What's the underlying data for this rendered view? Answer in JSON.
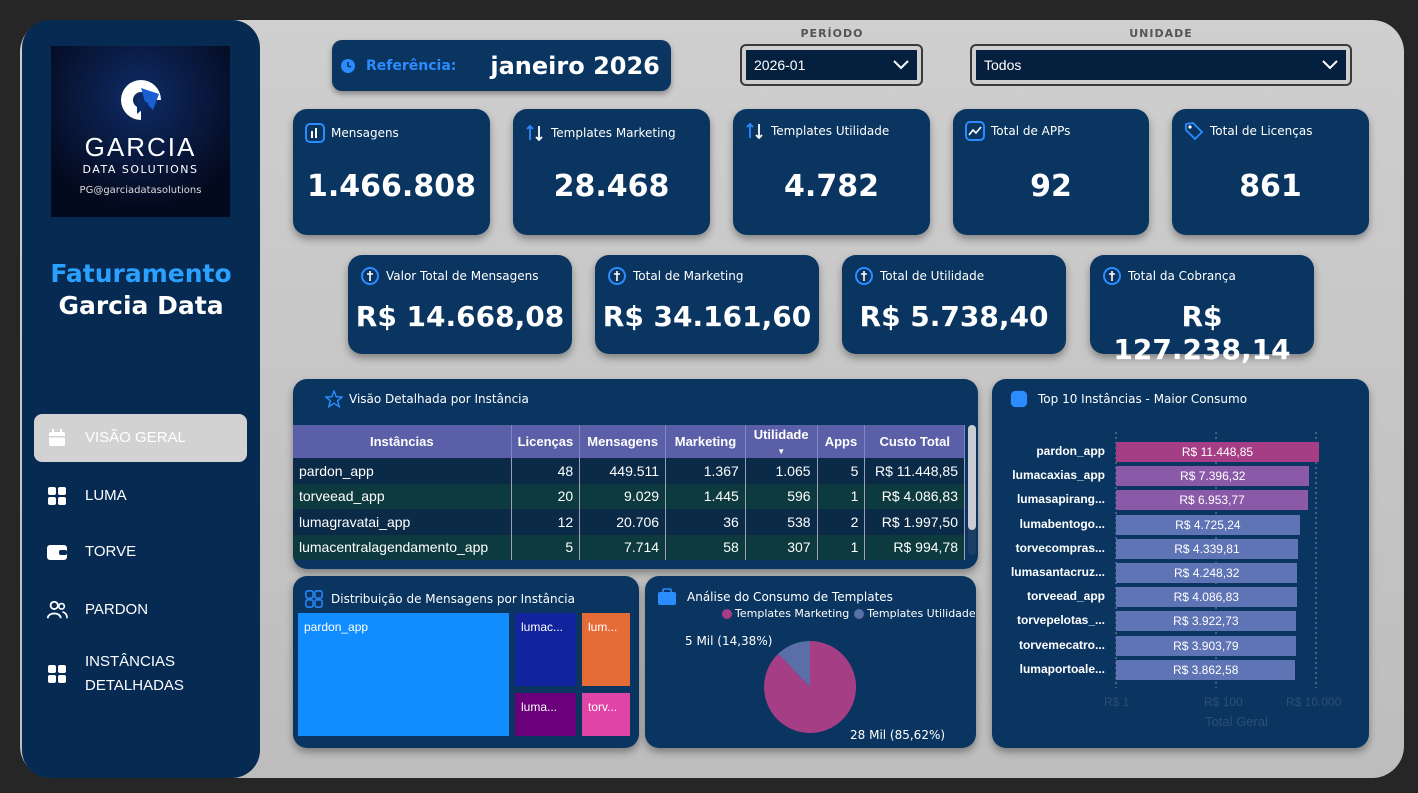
{
  "logo": {
    "title": "GARCIA",
    "subtitle": "DATA SOLUTIONS",
    "email": "PG@garciadatasolutions"
  },
  "brand": {
    "line1": "Faturamento",
    "line2": "Garcia Data"
  },
  "nav": [
    {
      "label": "VISÃO GERAL",
      "icon": "calendar-icon",
      "active": true
    },
    {
      "label": "LUMA",
      "icon": "grid-icon",
      "active": false
    },
    {
      "label": "TORVE",
      "icon": "wallet-icon",
      "active": false
    },
    {
      "label": "PARDON",
      "icon": "users-icon",
      "active": false
    },
    {
      "label": "INSTÂNCIAS DETALHADAS",
      "icon": "grid-icon",
      "active": false
    }
  ],
  "reference": {
    "label": "Referência:",
    "value": "janeiro 2026"
  },
  "filters": {
    "periodo": {
      "label": "PERÍODO",
      "value": "2026-01"
    },
    "unidade": {
      "label": "UNIDADE",
      "value": "Todos"
    }
  },
  "kpis_top": [
    {
      "label": "Mensagens",
      "value": "1.466.808",
      "icon": "chart-icon"
    },
    {
      "label": "Templates Marketing",
      "value": "28.468",
      "icon": "sort-icon"
    },
    {
      "label": "Templates Utilidade",
      "value": "4.782",
      "icon": "sort-icon"
    },
    {
      "label": "Total de APPs",
      "value": "92",
      "icon": "trend-icon"
    },
    {
      "label": "Total de Licenças",
      "value": "861",
      "icon": "tag-icon"
    }
  ],
  "kpis_money": [
    {
      "label": "Valor Total de Mensagens",
      "value": "R$ 14.668,08",
      "icon": "coin-icon"
    },
    {
      "label": "Total de Marketing",
      "value": "R$ 34.161,60",
      "icon": "coin-icon"
    },
    {
      "label": "Total de Utilidade",
      "value": "R$ 5.738,40",
      "icon": "coin-icon"
    },
    {
      "label": "Total da Cobrança",
      "value": "R$ 127.238,14",
      "icon": "coin-icon"
    }
  ],
  "table": {
    "title": "Visão Detalhada por Instância",
    "columns": [
      "Instâncias",
      "Licenças",
      "Mensagens",
      "Marketing",
      "Utilidade",
      "Apps",
      "Custo Total"
    ],
    "rows": [
      [
        "pardon_app",
        "48",
        "449.511",
        "1.367",
        "1.065",
        "5",
        "R$ 11.448,85"
      ],
      [
        "torveead_app",
        "20",
        "9.029",
        "1.445",
        "596",
        "1",
        "R$ 4.086,83"
      ],
      [
        "lumagravatai_app",
        "12",
        "20.706",
        "36",
        "538",
        "2",
        "R$ 1.997,50"
      ],
      [
        "lumacentralagendamento_app",
        "5",
        "7.714",
        "58",
        "307",
        "1",
        "R$ 994,78"
      ]
    ]
  },
  "treemap": {
    "title": "Distribuição de Mensagens por Instância",
    "cells": [
      {
        "label": "pardon_app",
        "color": "#118dff"
      },
      {
        "label": "lumac...",
        "color": "#12239e"
      },
      {
        "label": "lum...",
        "color": "#e66c37"
      },
      {
        "label": "luma...",
        "color": "#6b007b"
      },
      {
        "label": "torv...",
        "color": "#e044a7"
      }
    ]
  },
  "pie": {
    "title": "Análise do Consumo de Templates",
    "legend": [
      {
        "name": "Templates Marketing",
        "color": "#a63e86"
      },
      {
        "name": "Templates Utilidade",
        "color": "#5a6fa8"
      }
    ],
    "label_small": "5 Mil (14,38%)",
    "label_big": "28 Mil (85,62%)"
  },
  "chart_data": {
    "type": "bar",
    "title": "Top 10 Instâncias - Maior Consumo",
    "categories": [
      "pardon_app",
      "lumacaxias_app",
      "lumasapirang...",
      "lumabentogo...",
      "torvecompras...",
      "lumasantacruz...",
      "torveead_app",
      "torvepelotas_...",
      "torvemecatro...",
      "lumaportoale..."
    ],
    "values": [
      11448.85,
      7396.32,
      6953.77,
      4725.24,
      4339.81,
      4248.32,
      4086.83,
      3922.73,
      3903.79,
      3862.58
    ],
    "value_labels": [
      "R$ 11.448,85",
      "R$ 7.396,32",
      "R$ 6.953,77",
      "R$ 4.725,24",
      "R$ 4.339,81",
      "R$ 4.248,32",
      "R$ 4.086,83",
      "R$ 3.922,73",
      "R$ 3.903,79",
      "R$ 3.862,58"
    ],
    "colors": [
      "#a63e86",
      "#8a5aa8",
      "#8a5aa8",
      "#5f74b5",
      "#5f74b5",
      "#5f74b5",
      "#5f74b5",
      "#5f74b5",
      "#5f74b5",
      "#5f74b5"
    ],
    "x_scale": "log",
    "x_ticks": [
      "R$ 1",
      "R$ 100",
      "R$ 10.000"
    ],
    "xlabel": "Total Geral"
  }
}
